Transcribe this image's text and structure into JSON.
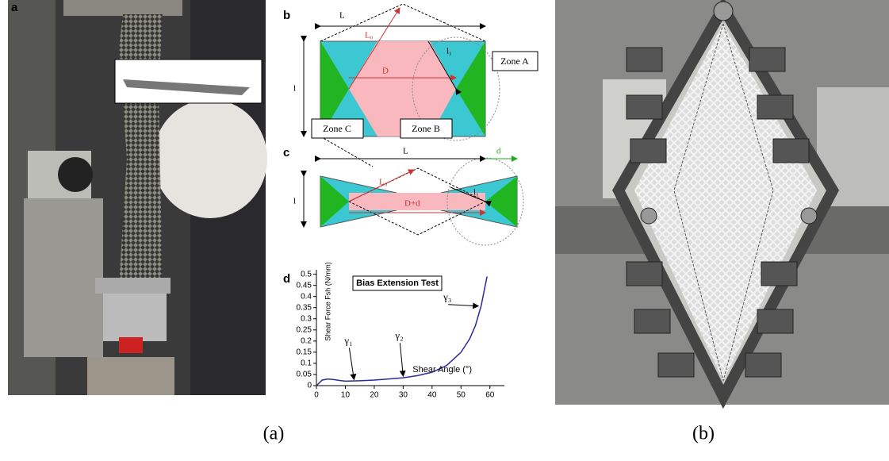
{
  "panels": {
    "a": {
      "label": "a"
    },
    "b": {
      "label": "b",
      "L": "L",
      "L0": "L₀",
      "l1": "l₁",
      "D": "D",
      "l": "l",
      "zone_a": "Zone A",
      "zone_b": "Zone B",
      "zone_c": "Zone C"
    },
    "c": {
      "label": "c",
      "L": "L",
      "d": "d",
      "L0": "L₀",
      "l1": "l₁",
      "D": "D+d",
      "l": "l"
    },
    "d": {
      "label": "d"
    }
  },
  "chart_data": {
    "type": "line",
    "title": "Bias Extension Test",
    "x_label": "Shear Angle (°)",
    "y_label": "Shear Force Fsh (N/mm)",
    "x": [
      0,
      2,
      4,
      6,
      8,
      10,
      15,
      20,
      25,
      30,
      35,
      40,
      45,
      50,
      53,
      55,
      57,
      59
    ],
    "values": [
      0,
      0.025,
      0.03,
      0.027,
      0.023,
      0.02,
      0.022,
      0.025,
      0.03,
      0.035,
      0.045,
      0.06,
      0.09,
      0.15,
      0.21,
      0.27,
      0.36,
      0.49
    ],
    "color": "#2b2b9a",
    "xlim": [
      0,
      65
    ],
    "ylim": [
      0,
      0.52
    ],
    "xticks": [
      0,
      10,
      20,
      30,
      40,
      50,
      60
    ],
    "yticks": [
      0,
      0.05,
      0.1,
      0.15,
      0.2,
      0.25,
      0.3,
      0.35,
      0.4,
      0.45,
      0.5
    ],
    "annotations": [
      {
        "text": "γ₁",
        "x": 13,
        "y": 0.02
      },
      {
        "text": "γ₂",
        "x": 30,
        "y": 0.035
      },
      {
        "text": "γ₃",
        "x": 56,
        "y": 0.35
      }
    ]
  },
  "captions": [
    "(a)",
    "(b)"
  ]
}
